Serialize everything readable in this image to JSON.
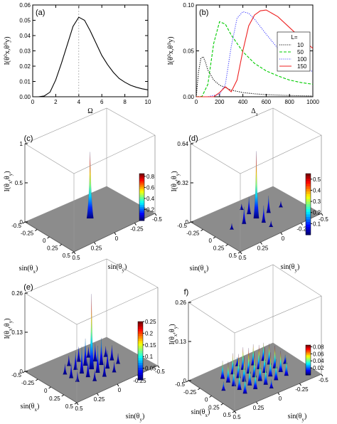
{
  "chart_data": [
    {
      "id": "a",
      "type": "line",
      "panel_label": "(a)",
      "xlabel": "Ω",
      "ylabel": "I(θ⁰x,θ⁰y)",
      "xlim": [
        0,
        10
      ],
      "ylim": [
        0,
        0.06
      ],
      "xticks": [
        "0",
        "2",
        "4",
        "6",
        "8",
        "10"
      ],
      "yticks": [
        "0.00",
        "0.01",
        "0.02",
        "0.03",
        "0.04",
        "0.05",
        "0.06"
      ],
      "reference_line_x": 4,
      "series": [
        {
          "color": "#000000",
          "x": [
            0.5,
            1,
            1.5,
            2,
            2.5,
            3,
            3.5,
            4,
            4.5,
            5,
            5.5,
            6,
            6.5,
            7,
            7.5,
            8,
            8.5,
            9,
            9.5,
            10
          ],
          "y": [
            0.0,
            0.0005,
            0.003,
            0.011,
            0.022,
            0.034,
            0.046,
            0.052,
            0.05,
            0.043,
            0.035,
            0.027,
            0.021,
            0.016,
            0.012,
            0.0095,
            0.0075,
            0.0062,
            0.0052,
            0.0045
          ]
        }
      ]
    },
    {
      "id": "b",
      "type": "line",
      "panel_label": "(b)",
      "xlabel": "Δz",
      "ylabel": "I(θ⁰x,θ⁰y)",
      "xlim": [
        0,
        1000
      ],
      "ylim": [
        0,
        0.11
      ],
      "xticks": [
        "0",
        "200",
        "400",
        "600",
        "800",
        "1000"
      ],
      "yticks": [
        "0.00",
        "0.05",
        "0.10"
      ],
      "legend": {
        "title": "L=",
        "placement": "center-right"
      },
      "series": [
        {
          "name": "10",
          "color": "#000000",
          "dash": "dotted",
          "x": [
            0,
            20,
            40,
            60,
            80,
            100,
            150,
            200,
            300,
            400,
            500,
            600,
            800,
            1000
          ],
          "y": [
            0.0,
            0.03,
            0.046,
            0.048,
            0.041,
            0.032,
            0.02,
            0.014,
            0.008,
            0.005,
            0.0035,
            0.0025,
            0.0015,
            0.001
          ]
        },
        {
          "name": "50",
          "color": "#00cc00",
          "dash": "dashed",
          "x": [
            0,
            50,
            100,
            150,
            200,
            250,
            300,
            400,
            500,
            600,
            700,
            800,
            900,
            1000
          ],
          "y": [
            0.0,
            0.0005,
            0.015,
            0.064,
            0.09,
            0.087,
            0.074,
            0.054,
            0.04,
            0.031,
            0.025,
            0.02,
            0.017,
            0.015
          ]
        },
        {
          "name": "100",
          "color": "#4444ff",
          "dash": "dotted",
          "x": [
            0,
            100,
            200,
            250,
            300,
            350,
            400,
            450,
            500,
            600,
            700,
            800,
            900,
            1000
          ],
          "y": [
            0.0,
            0.0,
            0.003,
            0.015,
            0.06,
            0.094,
            0.102,
            0.1,
            0.093,
            0.075,
            0.058,
            0.046,
            0.037,
            0.03
          ]
        },
        {
          "name": "150",
          "color": "#ee2222",
          "dash": "solid",
          "x": [
            0,
            150,
            200,
            250,
            300,
            350,
            400,
            450,
            500,
            550,
            600,
            700,
            800,
            900,
            1000
          ],
          "y": [
            0.0,
            0.0,
            0.005,
            0.012,
            0.006,
            0.02,
            0.055,
            0.085,
            0.098,
            0.103,
            0.104,
            0.096,
            0.083,
            0.07,
            0.058
          ]
        }
      ]
    },
    {
      "id": "c",
      "type": "heatmap",
      "panel_label": "(c)",
      "xlabel": "sin(θx)",
      "ylabel": "I(θx,θy)",
      "zlabel": "sin(θy)",
      "xlim": [
        -0.5,
        0.5
      ],
      "ylim": [
        -0.5,
        0.5
      ],
      "zlim": [
        0,
        1
      ],
      "xticks": [
        "-0.5",
        "-0.25",
        "0",
        "0.25",
        "0.5"
      ],
      "yticks": [
        "0.5",
        "0.25",
        "0",
        "-0.25",
        "-0.5"
      ],
      "zticks": [
        "0",
        "0.5",
        "1"
      ],
      "colorbar_ticks": [
        "0.8",
        "0.6",
        "0.4",
        "0.2"
      ],
      "colorbar_max": 0.85,
      "peaks": [
        {
          "x": 0,
          "y": 0,
          "h": 0.85,
          "w": 0.05
        }
      ]
    },
    {
      "id": "d",
      "type": "heatmap",
      "panel_label": "(d)",
      "xlabel": "sin(θx)",
      "ylabel": "I(θx,θy)",
      "zlabel": "sin(θy)",
      "xlim": [
        -0.5,
        0.5
      ],
      "ylim": [
        -0.5,
        0.5
      ],
      "zlim": [
        0,
        0.64
      ],
      "xticks": [
        "-0.5",
        "-0.25",
        "0",
        "0.25",
        "0.5"
      ],
      "yticks": [
        "0.5",
        "0.25",
        "0",
        "-0.25",
        "-0.5"
      ],
      "zticks": [
        "0",
        "0.32",
        "0.64"
      ],
      "colorbar_ticks": [
        "0.5",
        "0.4",
        "0.3",
        "0.2",
        "0.1"
      ],
      "colorbar_max": 0.55,
      "peaks": [
        {
          "x": 0,
          "y": 0,
          "h": 0.55,
          "w": 0.04
        },
        {
          "x": 0.15,
          "y": 0,
          "h": 0.14,
          "w": 0.03
        },
        {
          "x": -0.15,
          "y": 0,
          "h": 0.14,
          "w": 0.03
        },
        {
          "x": 0,
          "y": 0.15,
          "h": 0.14,
          "w": 0.03
        },
        {
          "x": 0,
          "y": -0.15,
          "h": 0.14,
          "w": 0.03
        },
        {
          "x": 0.3,
          "y": 0,
          "h": 0.05,
          "w": 0.025
        },
        {
          "x": -0.3,
          "y": 0,
          "h": 0.05,
          "w": 0.025
        },
        {
          "x": 0,
          "y": 0.3,
          "h": 0.05,
          "w": 0.025
        },
        {
          "x": 0,
          "y": -0.3,
          "h": 0.05,
          "w": 0.025
        }
      ]
    },
    {
      "id": "e",
      "type": "heatmap",
      "panel_label": "(e)",
      "xlabel": "sin(θx)",
      "ylabel": "I(θx,θy)",
      "zlabel": "sin(θy)",
      "xlim": [
        -0.5,
        0.5
      ],
      "ylim": [
        -0.5,
        0.5
      ],
      "zlim": [
        0,
        0.26
      ],
      "xticks": [
        "-0.5",
        "-0.25",
        "0",
        "0.25",
        "0.5"
      ],
      "yticks": [
        "0.5",
        "0.25",
        "0",
        "-0.25",
        "-0.5"
      ],
      "zticks": [
        "0",
        "0.13",
        "0.26"
      ],
      "colorbar_ticks": [
        "0.25",
        "0.2",
        "0.15",
        "0.1",
        "0.05"
      ],
      "colorbar_max": 0.25,
      "peaks": [
        {
          "x": 0,
          "y": 0,
          "h": 0.25,
          "w": 0.035
        },
        {
          "x": 0.12,
          "y": 0,
          "h": 0.09,
          "w": 0.03
        },
        {
          "x": -0.12,
          "y": 0,
          "h": 0.09,
          "w": 0.03
        },
        {
          "x": 0,
          "y": 0.12,
          "h": 0.09,
          "w": 0.03
        },
        {
          "x": 0,
          "y": -0.12,
          "h": 0.09,
          "w": 0.03
        },
        {
          "x": 0.12,
          "y": 0.12,
          "h": 0.06,
          "w": 0.025
        },
        {
          "x": -0.12,
          "y": 0.12,
          "h": 0.06,
          "w": 0.025
        },
        {
          "x": 0.12,
          "y": -0.12,
          "h": 0.06,
          "w": 0.025
        },
        {
          "x": -0.12,
          "y": -0.12,
          "h": 0.06,
          "w": 0.025
        },
        {
          "x": 0.25,
          "y": 0,
          "h": 0.05,
          "w": 0.025
        },
        {
          "x": -0.25,
          "y": 0,
          "h": 0.05,
          "w": 0.025
        },
        {
          "x": 0,
          "y": 0.25,
          "h": 0.05,
          "w": 0.025
        },
        {
          "x": 0,
          "y": -0.25,
          "h": 0.05,
          "w": 0.025
        },
        {
          "x": 0.25,
          "y": 0.12,
          "h": 0.035,
          "w": 0.022
        },
        {
          "x": -0.25,
          "y": 0.12,
          "h": 0.035,
          "w": 0.022
        },
        {
          "x": 0.25,
          "y": -0.12,
          "h": 0.035,
          "w": 0.022
        },
        {
          "x": -0.25,
          "y": -0.12,
          "h": 0.035,
          "w": 0.022
        },
        {
          "x": 0.12,
          "y": 0.25,
          "h": 0.035,
          "w": 0.022
        },
        {
          "x": -0.12,
          "y": 0.25,
          "h": 0.035,
          "w": 0.022
        },
        {
          "x": 0.12,
          "y": -0.25,
          "h": 0.035,
          "w": 0.022
        },
        {
          "x": -0.12,
          "y": -0.25,
          "h": 0.035,
          "w": 0.022
        }
      ]
    },
    {
      "id": "f",
      "type": "heatmap",
      "panel_label": "f)",
      "xlabel": "sin(θx)",
      "ylabel": "I(θx,θy)",
      "zlabel": "sin(θy)",
      "xlim": [
        -0.5,
        0.5
      ],
      "ylim": [
        -0.5,
        0.5
      ],
      "zlim": [
        0,
        0.26
      ],
      "xticks": [
        "-0.5",
        "-0.25",
        "0",
        "0.25",
        "0.5"
      ],
      "yticks": [
        "0.5",
        "0.25",
        "0",
        "-0.25",
        "-0.5"
      ],
      "zticks": [
        "0",
        "0.13",
        "0.26"
      ],
      "colorbar_ticks": [
        "0.08",
        "0.06",
        "0.04",
        "0.02"
      ],
      "colorbar_max": 0.085,
      "peaks": [
        {
          "x": -0.24,
          "y": -0.24,
          "h": 0.06,
          "w": 0.03
        },
        {
          "x": -0.12,
          "y": -0.24,
          "h": 0.07,
          "w": 0.03
        },
        {
          "x": 0,
          "y": -0.24,
          "h": 0.075,
          "w": 0.03
        },
        {
          "x": 0.12,
          "y": -0.24,
          "h": 0.07,
          "w": 0.03
        },
        {
          "x": 0.24,
          "y": -0.24,
          "h": 0.06,
          "w": 0.03
        },
        {
          "x": -0.24,
          "y": -0.12,
          "h": 0.07,
          "w": 0.03
        },
        {
          "x": -0.12,
          "y": -0.12,
          "h": 0.08,
          "w": 0.03
        },
        {
          "x": 0,
          "y": -0.12,
          "h": 0.085,
          "w": 0.03
        },
        {
          "x": 0.12,
          "y": -0.12,
          "h": 0.08,
          "w": 0.03
        },
        {
          "x": 0.24,
          "y": -0.12,
          "h": 0.07,
          "w": 0.03
        },
        {
          "x": -0.24,
          "y": 0,
          "h": 0.075,
          "w": 0.03
        },
        {
          "x": -0.12,
          "y": 0,
          "h": 0.085,
          "w": 0.03
        },
        {
          "x": 0,
          "y": 0,
          "h": 0.085,
          "w": 0.03
        },
        {
          "x": 0.12,
          "y": 0,
          "h": 0.085,
          "w": 0.03
        },
        {
          "x": 0.24,
          "y": 0,
          "h": 0.075,
          "w": 0.03
        },
        {
          "x": -0.24,
          "y": 0.12,
          "h": 0.07,
          "w": 0.03
        },
        {
          "x": -0.12,
          "y": 0.12,
          "h": 0.08,
          "w": 0.03
        },
        {
          "x": 0,
          "y": 0.12,
          "h": 0.085,
          "w": 0.03
        },
        {
          "x": 0.12,
          "y": 0.12,
          "h": 0.08,
          "w": 0.03
        },
        {
          "x": 0.24,
          "y": 0.12,
          "h": 0.07,
          "w": 0.03
        },
        {
          "x": -0.24,
          "y": 0.24,
          "h": 0.06,
          "w": 0.03
        },
        {
          "x": -0.12,
          "y": 0.24,
          "h": 0.07,
          "w": 0.03
        },
        {
          "x": 0,
          "y": 0.24,
          "h": 0.075,
          "w": 0.03
        },
        {
          "x": 0.12,
          "y": 0.24,
          "h": 0.07,
          "w": 0.03
        },
        {
          "x": 0.24,
          "y": 0.24,
          "h": 0.06,
          "w": 0.03
        },
        {
          "x": -0.36,
          "y": 0,
          "h": 0.03,
          "w": 0.025
        },
        {
          "x": 0.36,
          "y": 0,
          "h": 0.03,
          "w": 0.025
        },
        {
          "x": 0,
          "y": -0.36,
          "h": 0.03,
          "w": 0.025
        },
        {
          "x": 0,
          "y": 0.36,
          "h": 0.03,
          "w": 0.025
        }
      ]
    }
  ]
}
